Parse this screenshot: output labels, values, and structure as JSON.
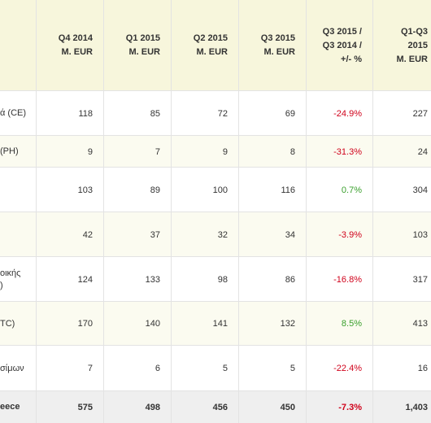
{
  "table": {
    "headers": [
      "",
      "Q4 2014\nM. EUR",
      "Q1 2015\nM. EUR",
      "Q2 2015\nM. EUR",
      "Q3 2015\nM. EUR",
      "Q3 2015 /\nQ3 2014 /\n+/- %",
      "Q1-Q3\n2015\nM. EUR"
    ],
    "rows": [
      {
        "label": "ά (CE)",
        "values": [
          "118",
          "85",
          "72",
          "69",
          "-24.9%",
          "227"
        ],
        "change_sign": "negative"
      },
      {
        "label": "(PH)",
        "values": [
          "9",
          "7",
          "9",
          "8",
          "-31.3%",
          "24"
        ],
        "change_sign": "negative"
      },
      {
        "label": "",
        "values": [
          "103",
          "89",
          "100",
          "116",
          "0.7%",
          "304"
        ],
        "change_sign": "positive"
      },
      {
        "label": "",
        "values": [
          "42",
          "37",
          "32",
          "34",
          "-3.9%",
          "103"
        ],
        "change_sign": "negative"
      },
      {
        "label": "οικής\n)",
        "values": [
          "124",
          "133",
          "98",
          "86",
          "-16.8%",
          "317"
        ],
        "change_sign": "negative"
      },
      {
        "label": "TC)",
        "values": [
          "170",
          "140",
          "141",
          "132",
          "8.5%",
          "413"
        ],
        "change_sign": "positive"
      },
      {
        "label": "σίμων",
        "values": [
          "7",
          "6",
          "5",
          "5",
          "-22.4%",
          "16"
        ],
        "change_sign": "negative"
      },
      {
        "label": "eece",
        "values": [
          "575",
          "498",
          "456",
          "450",
          "-7.3%",
          "1,403"
        ],
        "change_sign": "negative"
      }
    ]
  },
  "colors": {
    "header_bg": "#f7f6dc",
    "alt_row_bg": "#fbfbf0",
    "total_row_bg": "#efefef",
    "negative": "#d0021b",
    "positive": "#3aa02d"
  }
}
